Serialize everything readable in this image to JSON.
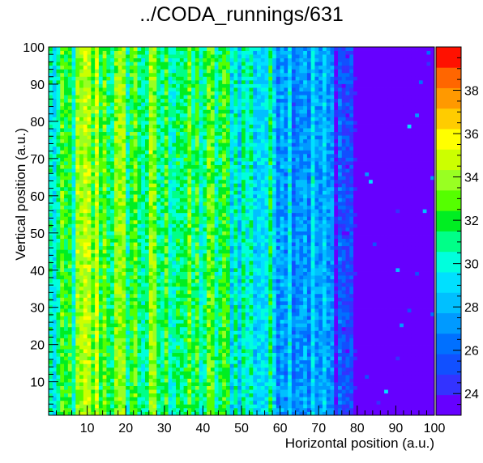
{
  "chart_data": {
    "type": "heatmap",
    "title": "../CODA_runnings/631",
    "xlabel": "Horizontal position (a.u.)",
    "ylabel": "Vertical position (a.u.)",
    "xlim": [
      0,
      100
    ],
    "ylim": [
      1,
      100
    ],
    "x_ticks": [
      10,
      20,
      30,
      40,
      50,
      60,
      70,
      80,
      90,
      100
    ],
    "y_ticks": [
      10,
      20,
      30,
      40,
      50,
      60,
      70,
      80,
      90,
      100
    ],
    "zlim": [
      23,
      40
    ],
    "z_ticks": [
      24,
      26,
      28,
      30,
      32,
      34,
      36,
      38
    ],
    "bins": {
      "x": 100,
      "y": 100
    },
    "palette": [
      "#6600ff",
      "#3333ff",
      "#1150ff",
      "#0070ff",
      "#009aff",
      "#00c0ff",
      "#00e0ff",
      "#00ffdd",
      "#00ff88",
      "#00ee22",
      "#55ff00",
      "#99ff22",
      "#ccff00",
      "#ffff00",
      "#ffcc00",
      "#ff9900",
      "#ff6600",
      "#ff1100"
    ],
    "column_profile": [
      {
        "x": 0,
        "z": 29.5
      },
      {
        "x": 3,
        "z": 30.5
      },
      {
        "x": 6,
        "z": 31.5
      },
      {
        "x": 9,
        "z": 33.0
      },
      {
        "x": 12,
        "z": 33.5
      },
      {
        "x": 15,
        "z": 33.0
      },
      {
        "x": 18,
        "z": 32.0
      },
      {
        "x": 21,
        "z": 32.5
      },
      {
        "x": 24,
        "z": 31.5
      },
      {
        "x": 27,
        "z": 32.0
      },
      {
        "x": 30,
        "z": 31.0
      },
      {
        "x": 33,
        "z": 32.5
      },
      {
        "x": 36,
        "z": 31.0
      },
      {
        "x": 40,
        "z": 31.5
      },
      {
        "x": 44,
        "z": 31.5
      },
      {
        "x": 48,
        "z": 30.5
      },
      {
        "x": 52,
        "z": 30.0
      },
      {
        "x": 56,
        "z": 29.5
      },
      {
        "x": 60,
        "z": 29.0
      },
      {
        "x": 64,
        "z": 28.5
      },
      {
        "x": 68,
        "z": 28.0
      },
      {
        "x": 71,
        "z": 27.0
      },
      {
        "x": 74,
        "z": 26.0
      },
      {
        "x": 76,
        "z": 25.5
      },
      {
        "x": 78,
        "z": 25.0
      },
      {
        "x": 80,
        "z": 23.5
      },
      {
        "x": 100,
        "z": 23.5
      }
    ]
  }
}
